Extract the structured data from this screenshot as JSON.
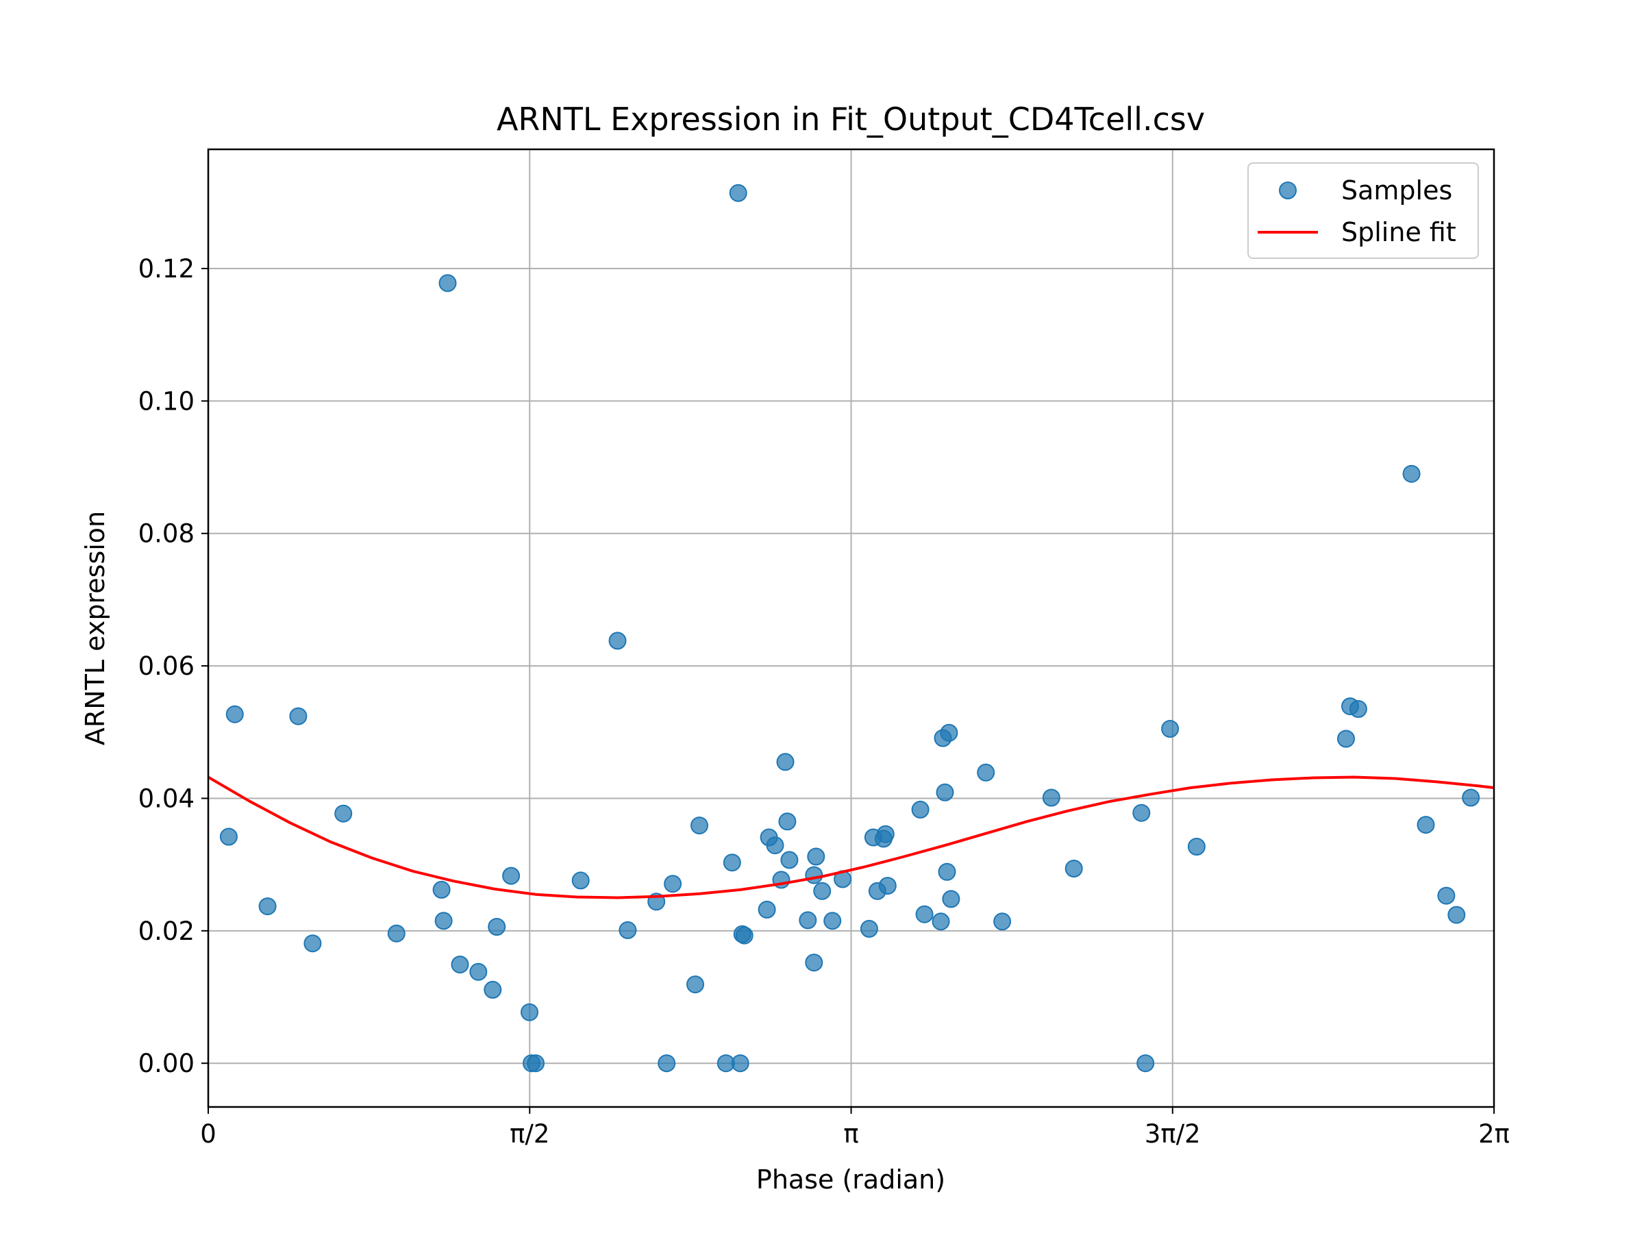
{
  "chart_data": {
    "type": "scatter",
    "title": "ARNTL Expression in Fit_Output_CD4Tcell.csv",
    "xlabel": "Phase (radian)",
    "ylabel": "ARNTL expression",
    "xlim": [
      0,
      6.283
    ],
    "ylim": [
      -0.0066,
      0.138
    ],
    "grid": true,
    "legend_placement": "top-right",
    "x_ticks": [
      {
        "value": 0,
        "label": "0"
      },
      {
        "value": 1.5708,
        "label": "π/2"
      },
      {
        "value": 3.1416,
        "label": "π"
      },
      {
        "value": 4.7124,
        "label": "3π/2"
      },
      {
        "value": 6.2832,
        "label": "2π"
      }
    ],
    "y_ticks": [
      {
        "value": 0.0,
        "label": "0.00"
      },
      {
        "value": 0.02,
        "label": "0.02"
      },
      {
        "value": 0.04,
        "label": "0.04"
      },
      {
        "value": 0.06,
        "label": "0.06"
      },
      {
        "value": 0.08,
        "label": "0.08"
      },
      {
        "value": 0.1,
        "label": "0.10"
      },
      {
        "value": 0.12,
        "label": "0.12"
      }
    ],
    "series": [
      {
        "name": "Samples",
        "kind": "scatter",
        "color": "#1f77b4",
        "points": [
          [
            0.1,
            0.0342
          ],
          [
            0.13,
            0.0527
          ],
          [
            0.29,
            0.0237
          ],
          [
            0.44,
            0.0524
          ],
          [
            0.51,
            0.0181
          ],
          [
            0.66,
            0.0377
          ],
          [
            0.92,
            0.0196
          ],
          [
            1.14,
            0.0262
          ],
          [
            1.15,
            0.0215
          ],
          [
            1.17,
            0.1178
          ],
          [
            1.23,
            0.0149
          ],
          [
            1.32,
            0.0138
          ],
          [
            1.39,
            0.0111
          ],
          [
            1.41,
            0.0206
          ],
          [
            1.48,
            0.0283
          ],
          [
            1.57,
            0.0077
          ],
          [
            1.58,
            0.0
          ],
          [
            1.6,
            0.0
          ],
          [
            1.82,
            0.0276
          ],
          [
            2.0,
            0.0638
          ],
          [
            2.05,
            0.0201
          ],
          [
            2.19,
            0.0244
          ],
          [
            2.24,
            0.0
          ],
          [
            2.27,
            0.0271
          ],
          [
            2.38,
            0.0119
          ],
          [
            2.4,
            0.0359
          ],
          [
            2.53,
            0.0
          ],
          [
            2.56,
            0.0303
          ],
          [
            2.59,
            0.1314
          ],
          [
            2.6,
            0.0
          ],
          [
            2.61,
            0.0195
          ],
          [
            2.62,
            0.0193
          ],
          [
            2.73,
            0.0232
          ],
          [
            2.74,
            0.0341
          ],
          [
            2.77,
            0.0329
          ],
          [
            2.8,
            0.0277
          ],
          [
            2.82,
            0.0455
          ],
          [
            2.83,
            0.0365
          ],
          [
            2.84,
            0.0307
          ],
          [
            2.93,
            0.0216
          ],
          [
            2.96,
            0.0152
          ],
          [
            2.96,
            0.0284
          ],
          [
            2.97,
            0.0312
          ],
          [
            3.0,
            0.026
          ],
          [
            3.05,
            0.0215
          ],
          [
            3.1,
            0.0278
          ],
          [
            3.23,
            0.0203
          ],
          [
            3.25,
            0.0341
          ],
          [
            3.27,
            0.026
          ],
          [
            3.3,
            0.0339
          ],
          [
            3.31,
            0.0346
          ],
          [
            3.32,
            0.0268
          ],
          [
            3.48,
            0.0383
          ],
          [
            3.5,
            0.0225
          ],
          [
            3.58,
            0.0214
          ],
          [
            3.59,
            0.0491
          ],
          [
            3.6,
            0.0409
          ],
          [
            3.61,
            0.0289
          ],
          [
            3.62,
            0.0499
          ],
          [
            3.63,
            0.0248
          ],
          [
            3.8,
            0.0439
          ],
          [
            3.88,
            0.0214
          ],
          [
            4.12,
            0.0401
          ],
          [
            4.23,
            0.0294
          ],
          [
            4.56,
            0.0378
          ],
          [
            4.58,
            0.0
          ],
          [
            4.7,
            0.0505
          ],
          [
            4.83,
            0.0327
          ],
          [
            5.56,
            0.049
          ],
          [
            5.58,
            0.0539
          ],
          [
            5.62,
            0.0535
          ],
          [
            5.88,
            0.089
          ],
          [
            5.95,
            0.036
          ],
          [
            6.05,
            0.0253
          ],
          [
            6.1,
            0.0224
          ],
          [
            6.17,
            0.0401
          ]
        ]
      },
      {
        "name": "Spline fit",
        "kind": "line",
        "color": "#ff0000",
        "points": [
          [
            0.0,
            0.0432
          ],
          [
            0.2,
            0.0396
          ],
          [
            0.4,
            0.0363
          ],
          [
            0.6,
            0.0334
          ],
          [
            0.8,
            0.031
          ],
          [
            1.0,
            0.029
          ],
          [
            1.2,
            0.0275
          ],
          [
            1.4,
            0.0263
          ],
          [
            1.6,
            0.0255
          ],
          [
            1.8,
            0.0251
          ],
          [
            2.0,
            0.025
          ],
          [
            2.2,
            0.0252
          ],
          [
            2.4,
            0.0256
          ],
          [
            2.6,
            0.0262
          ],
          [
            2.8,
            0.0271
          ],
          [
            3.0,
            0.0282
          ],
          [
            3.2,
            0.0296
          ],
          [
            3.4,
            0.0312
          ],
          [
            3.6,
            0.0329
          ],
          [
            3.8,
            0.0347
          ],
          [
            4.0,
            0.0365
          ],
          [
            4.2,
            0.0381
          ],
          [
            4.4,
            0.0395
          ],
          [
            4.6,
            0.0406
          ],
          [
            4.8,
            0.0416
          ],
          [
            5.0,
            0.0423
          ],
          [
            5.2,
            0.0428
          ],
          [
            5.4,
            0.0431
          ],
          [
            5.6,
            0.0432
          ],
          [
            5.8,
            0.043
          ],
          [
            6.0,
            0.0425
          ],
          [
            6.2,
            0.0419
          ],
          [
            6.283,
            0.0416
          ]
        ]
      }
    ]
  }
}
